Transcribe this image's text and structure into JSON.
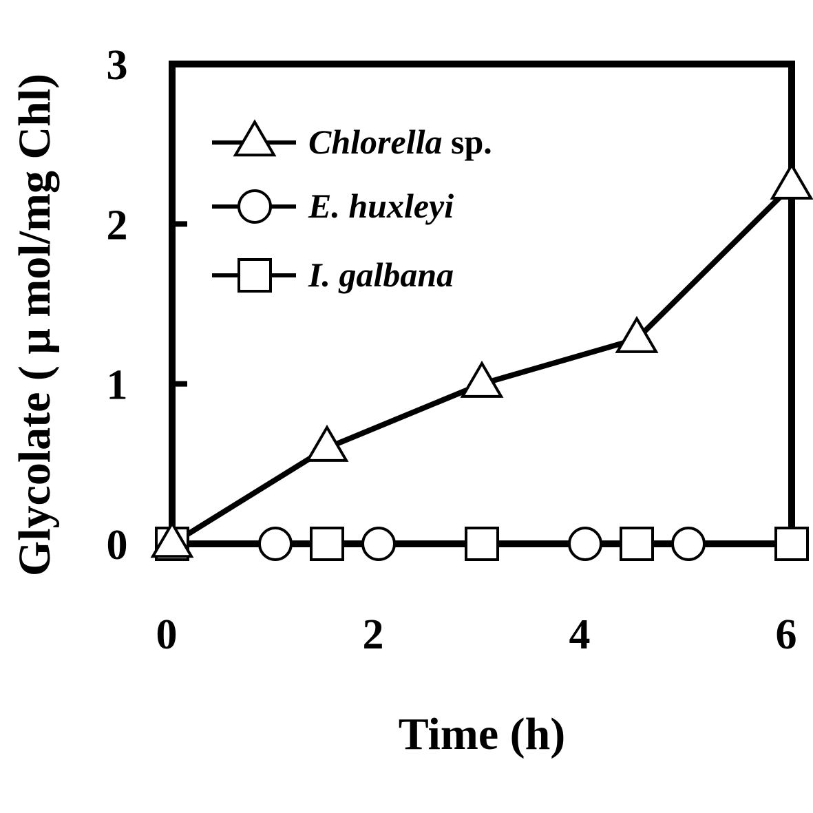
{
  "chart_data": {
    "type": "line",
    "title": "",
    "xlabel": "Time (h)",
    "ylabel": "Glycolate ( μ mol/mg Chl)",
    "xlim": [
      0,
      6
    ],
    "ylim": [
      0,
      3
    ],
    "xticks": [
      "0",
      "2",
      "4",
      "6"
    ],
    "yticks": [
      "0",
      "1",
      "2",
      "3"
    ],
    "grid": false,
    "legend_position": "top-left",
    "series": [
      {
        "name": "Chlorella",
        "name_suffix": " sp.",
        "marker": "triangle",
        "x": [
          0,
          1.5,
          3,
          4.5,
          6
        ],
        "y": [
          0,
          0.6,
          1.0,
          1.28,
          2.24
        ]
      },
      {
        "name": "E. huxleyi",
        "name_suffix": "",
        "marker": "circle",
        "x": [
          0,
          1,
          2,
          4,
          5
        ],
        "y": [
          0,
          0,
          0,
          0,
          0
        ]
      },
      {
        "name": "I. galbana",
        "name_suffix": "",
        "marker": "square",
        "x": [
          0,
          1.5,
          3,
          4.5,
          6
        ],
        "y": [
          0,
          0,
          0,
          0,
          0
        ]
      }
    ]
  }
}
